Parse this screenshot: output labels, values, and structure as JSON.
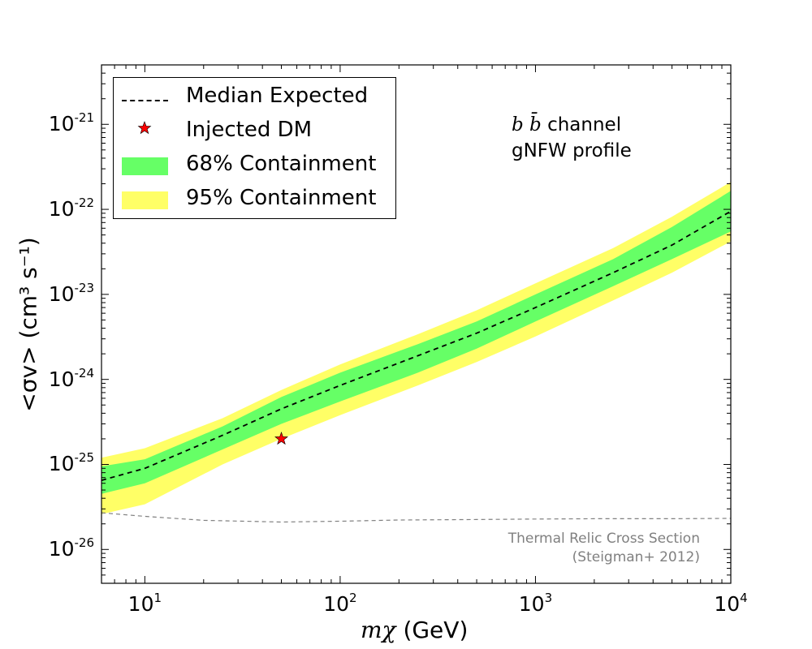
{
  "chart_data": {
    "type": "line",
    "title": "",
    "xlabel": "(GeV)",
    "xlabel_symbol": "mχ",
    "ylabel": "<σv> (cm³ s⁻¹)",
    "xscale": "log",
    "yscale": "log",
    "xlim": [
      6,
      10000
    ],
    "ylim": [
      4e-27,
      5e-21
    ],
    "x_ticks": [
      {
        "value": 10,
        "base": "10",
        "exp": "1"
      },
      {
        "value": 100,
        "base": "10",
        "exp": "2"
      },
      {
        "value": 1000,
        "base": "10",
        "exp": "3"
      },
      {
        "value": 10000,
        "base": "10",
        "exp": "4"
      }
    ],
    "y_ticks": [
      {
        "value": 1e-26,
        "base": "10",
        "exp": "-26"
      },
      {
        "value": 1e-25,
        "base": "10",
        "exp": "-25"
      },
      {
        "value": 1e-24,
        "base": "10",
        "exp": "-24"
      },
      {
        "value": 1e-23,
        "base": "10",
        "exp": "-23"
      },
      {
        "value": 1e-22,
        "base": "10",
        "exp": "-22"
      },
      {
        "value": 1e-21,
        "base": "10",
        "exp": "-21"
      }
    ],
    "legend_position": "top-left",
    "legend": [
      {
        "label": "Median Expected",
        "kind": "dashed-line",
        "color": "#000000"
      },
      {
        "label": "Injected DM",
        "kind": "star",
        "color": "#ff0000"
      },
      {
        "label": "68% Containment",
        "kind": "band",
        "color": "#66ff66"
      },
      {
        "label": "95% Containment",
        "kind": "band",
        "color": "#ffff66"
      }
    ],
    "annotations": {
      "channel_symbol": "b b̄",
      "channel_text": "channel",
      "profile": "gNFW profile",
      "relic_line1": "Thermal Relic Cross Section",
      "relic_line2": "(Steigman+ 2012)"
    },
    "series": {
      "median_expected": {
        "x": [
          6,
          10,
          25,
          50,
          100,
          250,
          500,
          1000,
          2500,
          5000,
          10000
        ],
        "y": [
          6.5e-26,
          9e-26,
          2.2e-25,
          4.5e-25,
          8.5e-25,
          1.9e-24,
          3.5e-24,
          7e-24,
          1.8e-23,
          3.8e-23,
          9.5e-23
        ]
      },
      "band_68": {
        "x": [
          6,
          10,
          25,
          50,
          100,
          250,
          500,
          1000,
          2500,
          5000,
          10000
        ],
        "lower": [
          4.5e-26,
          6e-26,
          1.5e-25,
          3e-25,
          5.5e-25,
          1.2e-24,
          2.3e-24,
          4.8e-24,
          1.25e-23,
          2.6e-23,
          5.5e-23
        ],
        "upper": [
          9.5e-26,
          1.15e-25,
          2.8e-25,
          6.2e-25,
          1.2e-24,
          2.6e-24,
          4.8e-24,
          1e-23,
          2.6e-23,
          6.2e-23,
          1.65e-22
        ]
      },
      "band_95": {
        "x": [
          6,
          10,
          25,
          50,
          100,
          250,
          500,
          1000,
          2500,
          5000,
          10000
        ],
        "lower": [
          2.6e-26,
          3.4e-26,
          1e-25,
          2e-25,
          3.8e-25,
          8.5e-25,
          1.6e-24,
          3.2e-24,
          8.5e-24,
          1.8e-23,
          4.2e-23
        ],
        "upper": [
          1.2e-25,
          1.55e-25,
          3.5e-25,
          7.5e-25,
          1.5e-24,
          3.4e-24,
          6.5e-24,
          1.35e-23,
          3.5e-23,
          8.2e-23,
          2.1e-22
        ]
      },
      "thermal_relic": {
        "x": [
          6,
          10,
          20,
          50,
          100,
          200,
          500,
          1000,
          2000,
          5000,
          10000
        ],
        "y": [
          2.7e-26,
          2.45e-26,
          2.2e-26,
          2.1e-26,
          2.15e-26,
          2.22e-26,
          2.25e-26,
          2.28e-26,
          2.3e-26,
          2.3e-26,
          2.32e-26
        ]
      },
      "injected_dm": {
        "x": 50,
        "y": 2e-25
      }
    }
  }
}
